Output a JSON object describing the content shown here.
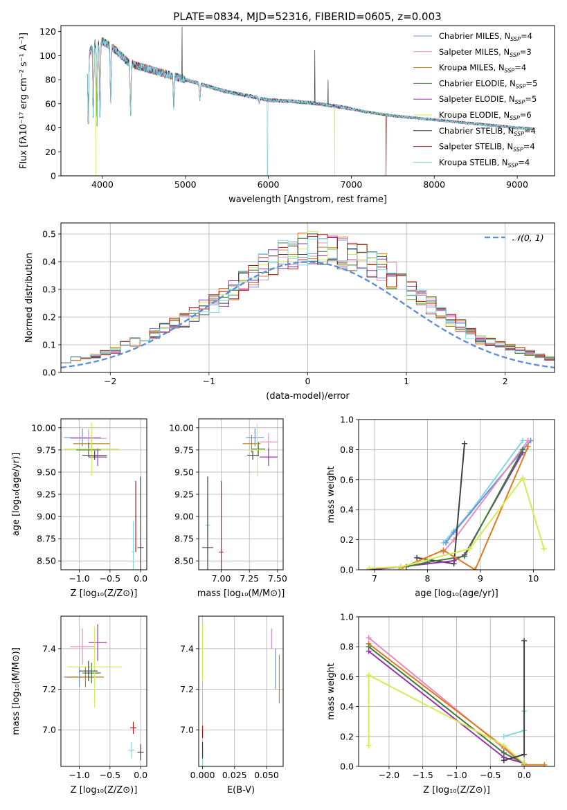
{
  "figure": {
    "title": "PLATE=0834, MJD=52316, FIBERID=0605, z=0.003"
  },
  "colors": {
    "Chabrier MILES": "#6c8ee0",
    "Salpeter MILES": "#e58cc0",
    "Kroupa MILES": "#b8860b",
    "Chabrier ELODIE": "#3a7a3a",
    "Salpeter ELODIE": "#9a30b0",
    "Kroupa ELODIE": "#d4ec50",
    "Chabrier STELIB": "#404040",
    "Salpeter STELIB": "#b01818",
    "Kroupa STELIB": "#80d8e0",
    "orange": "#e07820",
    "gauss": "#5b8dd9"
  },
  "chart_data": [
    {
      "id": "spectrum",
      "type": "line",
      "title": "PLATE=0834, MJD=52316, FIBERID=0605, z=0.003",
      "xlabel": "wavelength [Angstrom, rest frame]",
      "ylabel": "Flux [fλ10⁻¹⁷ erg cm⁻² s⁻¹ A⁻¹]",
      "xlim": [
        3500,
        9450
      ],
      "ylim": [
        0,
        125
      ],
      "xticks": [
        4000,
        5000,
        6000,
        7000,
        8000,
        9000
      ],
      "yticks": [
        0,
        20,
        40,
        60,
        80,
        100,
        120
      ],
      "grid": false,
      "legend_position": "top-right",
      "legend": [
        {
          "label": "Chabrier MILES, N",
          "sub": "SSP",
          "eq": "=4"
        },
        {
          "label": "Salpeter MILES, N",
          "sub": "SSP",
          "eq": "=3"
        },
        {
          "label": "Kroupa MILES, N",
          "sub": "SSP",
          "eq": "=4"
        },
        {
          "label": "Chabrier ELODIE, N",
          "sub": "SSP",
          "eq": "=5"
        },
        {
          "label": "Salpeter ELODIE, N",
          "sub": "SSP",
          "eq": "=5"
        },
        {
          "label": "Kroupa ELODIE, N",
          "sub": "SSP",
          "eq": "=6"
        },
        {
          "label": "Chabrier STELIB, N",
          "sub": "SSP",
          "eq": "=4"
        },
        {
          "label": "Salpeter STELIB, N",
          "sub": "SSP",
          "eq": "=4"
        },
        {
          "label": "Kroupa STELIB, N",
          "sub": "SSP",
          "eq": "=4"
        }
      ],
      "continuum": [
        [
          3820,
          100
        ],
        [
          3900,
          110
        ],
        [
          4000,
          112
        ],
        [
          4100,
          108
        ],
        [
          4200,
          102
        ],
        [
          4300,
          95
        ],
        [
          4400,
          92
        ],
        [
          4500,
          90
        ],
        [
          4700,
          86
        ],
        [
          4900,
          82
        ],
        [
          5100,
          78
        ],
        [
          5300,
          74
        ],
        [
          5500,
          70
        ],
        [
          5800,
          66
        ],
        [
          6000,
          63
        ],
        [
          6300,
          62
        ],
        [
          6600,
          60
        ],
        [
          6900,
          57
        ],
        [
          7200,
          53
        ],
        [
          7500,
          50
        ],
        [
          7800,
          48
        ],
        [
          8100,
          46
        ],
        [
          8400,
          44
        ],
        [
          8700,
          42
        ],
        [
          9000,
          40
        ],
        [
          9200,
          39
        ]
      ],
      "absorption": [
        [
          3830,
          40
        ],
        [
          3890,
          45
        ],
        [
          3935,
          40
        ],
        [
          3970,
          45
        ],
        [
          4100,
          60
        ],
        [
          4340,
          50
        ],
        [
          4860,
          55
        ],
        [
          5175,
          62
        ],
        [
          5890,
          60
        ]
      ],
      "emission_spikes": [
        [
          4960,
          124
        ],
        [
          6560,
          105
        ],
        [
          6720,
          80
        ]
      ],
      "drops_to_zero": [
        [
          3920,
          "Kroupa ELODIE"
        ],
        [
          5990,
          "Kroupa STELIB"
        ],
        [
          6800,
          "Kroupa ELODIE"
        ],
        [
          7420,
          "Salpeter STELIB"
        ]
      ]
    },
    {
      "id": "residuals",
      "type": "histogram",
      "xlabel": "(data-model)/error",
      "ylabel": "Normed distribution",
      "xlim": [
        -2.5,
        2.5
      ],
      "ylim": [
        0,
        0.54
      ],
      "xticks": [
        -2,
        -1,
        0,
        1,
        2
      ],
      "yticks": [
        0.0,
        0.1,
        0.2,
        0.3,
        0.4,
        0.5
      ],
      "grid": true,
      "legend_position": "top-right",
      "legend": [
        {
          "label": "𝒩(0, 1)"
        }
      ],
      "bin_width": 0.1,
      "profile": [
        0.04,
        0.05,
        0.05,
        0.06,
        0.07,
        0.08,
        0.1,
        0.11,
        0.13,
        0.14,
        0.16,
        0.18,
        0.19,
        0.21,
        0.23,
        0.25,
        0.27,
        0.3,
        0.33,
        0.35,
        0.38,
        0.4,
        0.42,
        0.43,
        0.45,
        0.45,
        0.44,
        0.44,
        0.43,
        0.42,
        0.41,
        0.4,
        0.38,
        0.35,
        0.32,
        0.29,
        0.27,
        0.24,
        0.21,
        0.19,
        0.17,
        0.14,
        0.12,
        0.11,
        0.1,
        0.09,
        0.08,
        0.07,
        0.06,
        0.05
      ],
      "series_order": [
        "Chabrier MILES",
        "Salpeter MILES",
        "Kroupa MILES",
        "Chabrier ELODIE",
        "Salpeter ELODIE",
        "Kroupa ELODIE",
        "Chabrier STELIB",
        "Salpeter STELIB",
        "Kroupa STELIB"
      ]
    },
    {
      "id": "age-vs-Z",
      "type": "errorbar",
      "xlabel": "Z [log₁₀(Z/Z⊙)]",
      "ylabel": "age  [log₁₀(age/yr)]",
      "xlim": [
        -1.3,
        0.1
      ],
      "ylim": [
        8.4,
        10.1
      ],
      "xticks": [
        -1.0,
        -0.5,
        0.0
      ],
      "yticks": [
        8.5,
        8.75,
        9.0,
        9.25,
        9.5,
        9.75,
        10.0
      ],
      "grid": true,
      "points": [
        {
          "s": "Chabrier MILES",
          "x": -0.95,
          "y": 9.89,
          "xe": 0.3,
          "ye": 0.1
        },
        {
          "s": "Salpeter MILES",
          "x": -0.85,
          "y": 9.88,
          "xe": 0.3,
          "ye": 0.1
        },
        {
          "s": "Kroupa MILES",
          "x": -0.8,
          "y": 9.82,
          "xe": 0.3,
          "ye": 0.1
        },
        {
          "s": "Chabrier ELODIE",
          "x": -0.85,
          "y": 9.75,
          "xe": 0.2,
          "ye": 0.08
        },
        {
          "s": "Salpeter ELODIE",
          "x": -0.7,
          "y": 9.67,
          "xe": 0.15,
          "ye": 0.1
        },
        {
          "s": "Kroupa ELODIE",
          "x": -0.8,
          "y": 9.76,
          "xe": 0.45,
          "ye": 0.3
        },
        {
          "s": "Chabrier STELIB",
          "x": -0.75,
          "y": 9.69,
          "xe": 0.2,
          "ye": 0.05
        },
        {
          "s": "Salpeter STELIB",
          "x": -0.08,
          "y": 9.0,
          "xe": 0.01,
          "ye": 0.4
        },
        {
          "s": "Kroupa STELIB",
          "x": -0.12,
          "y": 8.6,
          "xe": 0.02,
          "ye": 0.35
        },
        {
          "s": "Chabrier STELIB",
          "x": 0.0,
          "y": 8.65,
          "xe": 0.05,
          "ye": 0.8
        }
      ]
    },
    {
      "id": "age-vs-mass",
      "type": "errorbar",
      "xlabel": "mass [log₁₀(M/M⊙)]",
      "ylabel": "",
      "xlim": [
        6.8,
        7.55
      ],
      "ylim": [
        8.4,
        10.1
      ],
      "xticks": [
        7.0,
        7.25,
        7.5
      ],
      "yticks": [
        8.5,
        8.75,
        9.0,
        9.25,
        9.5,
        9.75,
        10.0
      ],
      "grid": true,
      "points": [
        {
          "s": "Chabrier MILES",
          "x": 7.3,
          "y": 9.89,
          "xe": 0.08,
          "ye": 0.1
        },
        {
          "s": "Salpeter MILES",
          "x": 7.42,
          "y": 9.84,
          "xe": 0.08,
          "ye": 0.1
        },
        {
          "s": "Kroupa MILES",
          "x": 7.27,
          "y": 9.82,
          "xe": 0.08,
          "ye": 0.1
        },
        {
          "s": "Chabrier ELODIE",
          "x": 7.33,
          "y": 9.76,
          "xe": 0.06,
          "ye": 0.08
        },
        {
          "s": "Salpeter ELODIE",
          "x": 7.42,
          "y": 9.67,
          "xe": 0.08,
          "ye": 0.1
        },
        {
          "s": "Kroupa ELODIE",
          "x": 7.32,
          "y": 9.75,
          "xe": 0.06,
          "ye": 0.3
        },
        {
          "s": "Chabrier STELIB",
          "x": 7.28,
          "y": 9.69,
          "xe": 0.05,
          "ye": 0.05
        },
        {
          "s": "Salpeter STELIB",
          "x": 7.0,
          "y": 8.6,
          "xe": 0.02,
          "ye": 0.8
        },
        {
          "s": "Kroupa STELIB",
          "x": 6.88,
          "y": 8.9,
          "xe": 0.02,
          "ye": 0.35
        },
        {
          "s": "Chabrier STELIB",
          "x": 6.88,
          "y": 8.65,
          "xe": 0.05,
          "ye": 0.8
        }
      ]
    },
    {
      "id": "massweight-vs-age",
      "type": "line",
      "xlabel": "age  [log₁₀(age/yr)]",
      "ylabel": "mass weight",
      "xlim": [
        6.7,
        10.4
      ],
      "ylim": [
        0,
        1.0
      ],
      "xticks": [
        7,
        8,
        9,
        10
      ],
      "yticks": [
        0.0,
        0.2,
        0.4,
        0.6,
        0.8,
        1.0
      ],
      "grid": true,
      "series": [
        {
          "s": "Kroupa STELIB",
          "x": [
            8.3,
            8.5,
            8.8,
            9.8
          ],
          "y": [
            0.18,
            0.26,
            0.38,
            0.86
          ]
        },
        {
          "s": "Chabrier MILES",
          "x": [
            8.35,
            8.5,
            9.95
          ],
          "y": [
            0.18,
            0.25,
            0.86
          ]
        },
        {
          "s": "Salpeter MILES",
          "x": [
            8.3,
            8.5,
            9.9
          ],
          "y": [
            0.12,
            0.2,
            0.86
          ]
        },
        {
          "s": "Chabrier STELIB",
          "x": [
            7.8,
            8.5,
            8.7
          ],
          "y": [
            0.08,
            0.04,
            0.84
          ]
        },
        {
          "s": "Salpeter ELODIE",
          "x": [
            6.9,
            7.5,
            8.5,
            8.7,
            9.8
          ],
          "y": [
            0.0,
            0.02,
            0.06,
            0.1,
            0.78
          ]
        },
        {
          "s": "Chabrier ELODIE",
          "x": [
            7.6,
            8.0,
            8.7,
            9.8
          ],
          "y": [
            0.02,
            0.05,
            0.09,
            0.8
          ]
        },
        {
          "s": "orange",
          "x": [
            7.5,
            8.3,
            8.9,
            9.9
          ],
          "y": [
            0.01,
            0.13,
            0.0,
            0.82
          ]
        },
        {
          "s": "Kroupa ELODIE",
          "x": [
            6.9,
            7.5,
            8.8,
            9.8,
            10.2
          ],
          "y": [
            0.01,
            0.02,
            0.14,
            0.61,
            0.14
          ]
        }
      ]
    },
    {
      "id": "mass-vs-Z",
      "type": "errorbar",
      "xlabel": "Z [log₁₀(Z/Z⊙)]",
      "ylabel": "mass [log₁₀(M/M⊙)]",
      "xlim": [
        -1.3,
        0.1
      ],
      "ylim": [
        6.82,
        7.56
      ],
      "xticks": [
        -1.0,
        -0.5,
        0.0
      ],
      "yticks": [
        7.0,
        7.2,
        7.4
      ],
      "grid": true,
      "points": [
        {
          "s": "Chabrier MILES",
          "x": -1.0,
          "y": 7.26,
          "xe": 0.25,
          "ye": 0.05
        },
        {
          "s": "Salpeter MILES",
          "x": -0.95,
          "y": 7.41,
          "xe": 0.2,
          "ye": 0.09
        },
        {
          "s": "Kroupa MILES",
          "x": -0.9,
          "y": 7.26,
          "xe": 0.3,
          "ye": 0.05
        },
        {
          "s": "Chabrier ELODIE",
          "x": -0.8,
          "y": 7.28,
          "xe": 0.15,
          "ye": 0.05
        },
        {
          "s": "Salpeter ELODIE",
          "x": -0.7,
          "y": 7.43,
          "xe": 0.15,
          "ye": 0.09
        },
        {
          "s": "Kroupa ELODIE",
          "x": -0.75,
          "y": 7.31,
          "xe": 0.45,
          "ye": 0.2
        },
        {
          "s": "Chabrier STELIB",
          "x": -0.85,
          "y": 7.29,
          "xe": 0.15,
          "ye": 0.05
        },
        {
          "s": "Salpeter STELIB",
          "x": -0.12,
          "y": 7.01,
          "xe": 0.05,
          "ye": 0.03
        },
        {
          "s": "Kroupa STELIB",
          "x": -0.15,
          "y": 6.9,
          "xe": 0.05,
          "ye": 0.04
        },
        {
          "s": "Chabrier STELIB",
          "x": 0.0,
          "y": 6.89,
          "xe": 0.05,
          "ye": 0.04
        }
      ]
    },
    {
      "id": "mass-vs-ebv",
      "type": "errorbar",
      "xlabel": "E(B-V)",
      "ylabel": "",
      "xlim": [
        -0.003,
        0.063
      ],
      "ylim": [
        6.82,
        7.56
      ],
      "xticks": [
        0.0,
        0.025,
        0.05
      ],
      "yticks": [
        7.0,
        7.2,
        7.4
      ],
      "grid": true,
      "points": [
        {
          "s": "Chabrier MILES",
          "x": 0.057,
          "y": 7.3,
          "xe": 0.0,
          "ye": 0.1
        },
        {
          "s": "Salpeter MILES",
          "x": 0.054,
          "y": 7.45,
          "xe": 0.0,
          "ye": 0.05
        },
        {
          "s": "orange",
          "x": 0.06,
          "y": 7.25,
          "xe": 0.0,
          "ye": 0.12
        },
        {
          "s": "Kroupa ELODIE",
          "x": 0.0,
          "y": 7.38,
          "xe": 0.0,
          "ye": 0.14
        },
        {
          "s": "Salpeter STELIB",
          "x": 0.0,
          "y": 6.99,
          "xe": 0.0,
          "ye": 0.03
        },
        {
          "s": "Kroupa STELIB",
          "x": 0.0,
          "y": 6.86,
          "xe": 0.0,
          "ye": 0.04
        },
        {
          "s": "Chabrier STELIB",
          "x": 0.0,
          "y": 6.9,
          "xe": 0.0,
          "ye": 0.04
        }
      ]
    },
    {
      "id": "massweight-vs-Z",
      "type": "line",
      "xlabel": "Z [log₁₀(Z/Z⊙)]",
      "ylabel": "mass weight",
      "xlim": [
        -2.45,
        0.45
      ],
      "ylim": [
        0,
        1.0
      ],
      "xticks": [
        -2.0,
        -1.5,
        -1.0,
        -0.5,
        0.0
      ],
      "yticks": [
        0.0,
        0.2,
        0.4,
        0.6,
        0.8,
        1.0
      ],
      "grid": true,
      "series": [
        {
          "s": "Salpeter MILES",
          "x": [
            -2.3,
            -0.3,
            0.0
          ],
          "y": [
            0.86,
            0.12,
            0.01
          ]
        },
        {
          "s": "orange",
          "x": [
            -2.3,
            -0.3,
            0.0,
            0.3
          ],
          "y": [
            0.82,
            0.13,
            0.01,
            0.01
          ]
        },
        {
          "s": "Chabrier ELODIE",
          "x": [
            -2.3,
            -0.3,
            0.0
          ],
          "y": [
            0.8,
            0.09,
            0.02
          ]
        },
        {
          "s": "Salpeter ELODIE",
          "x": [
            -2.3,
            -0.3,
            0.0
          ],
          "y": [
            0.77,
            0.06,
            0.02
          ]
        },
        {
          "s": "Kroupa ELODIE",
          "x": [
            -2.3,
            -2.3,
            -0.3,
            0.0
          ],
          "y": [
            0.14,
            0.61,
            0.14,
            0.02
          ]
        },
        {
          "s": "Kroupa STELIB",
          "x": [
            -0.3,
            0.0,
            0.0
          ],
          "y": [
            0.2,
            0.24,
            0.37
          ]
        },
        {
          "s": "Chabrier STELIB",
          "x": [
            -0.3,
            0.0,
            0.0
          ],
          "y": [
            0.04,
            0.08,
            0.84
          ]
        }
      ]
    }
  ]
}
